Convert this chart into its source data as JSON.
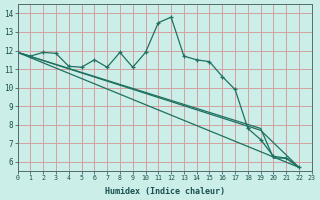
{
  "xlabel": "Humidex (Indice chaleur)",
  "xlim": [
    0,
    23
  ],
  "ylim": [
    5.5,
    14.5
  ],
  "xticks": [
    0,
    1,
    2,
    3,
    4,
    5,
    6,
    7,
    8,
    9,
    10,
    11,
    12,
    13,
    14,
    15,
    16,
    17,
    18,
    19,
    20,
    21,
    22,
    23
  ],
  "yticks": [
    6,
    7,
    8,
    9,
    10,
    11,
    12,
    13,
    14
  ],
  "background_color": "#cceee8",
  "grid_color": "#d4a0a0",
  "line_color": "#1e7060",
  "line1_x": [
    0,
    1,
    2,
    3,
    4,
    5,
    6,
    7,
    8,
    9,
    10,
    11,
    12,
    13,
    14,
    15,
    16,
    17,
    18,
    19,
    20,
    21,
    22
  ],
  "line1_y": [
    11.9,
    11.7,
    11.9,
    11.85,
    11.15,
    11.1,
    11.5,
    11.1,
    11.9,
    11.1,
    11.9,
    13.5,
    13.8,
    11.7,
    11.5,
    11.4,
    10.6,
    9.9,
    7.8,
    7.2,
    6.3,
    6.2,
    5.7
  ],
  "line2_x": [
    0,
    22
  ],
  "line2_y": [
    11.9,
    5.7
  ],
  "line3_x": [
    0,
    19,
    22
  ],
  "line3_y": [
    11.9,
    7.7,
    5.7
  ],
  "line4_x": [
    0,
    19,
    20,
    21,
    22
  ],
  "line4_y": [
    11.9,
    7.8,
    6.2,
    6.2,
    5.7
  ]
}
